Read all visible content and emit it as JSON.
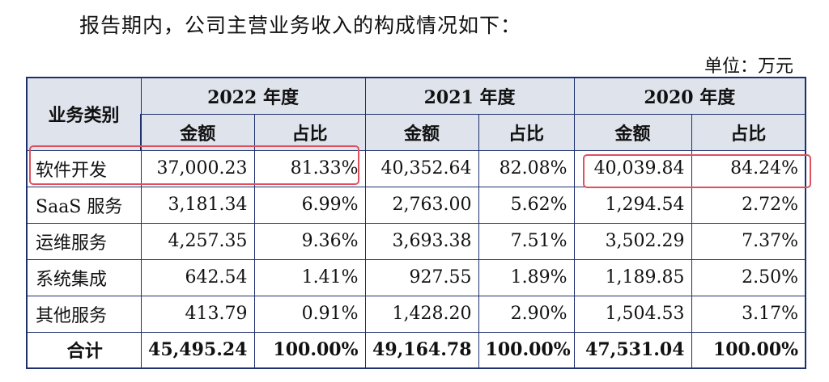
{
  "intro_text": "报告期内，公司主营业务收入的构成情况如下：",
  "unit_label": "单位：万元",
  "table": {
    "category_header": "业务类别",
    "years": [
      "2022 年度",
      "2021 年度",
      "2020 年度"
    ],
    "amount_label": "金额",
    "ratio_label": "占比",
    "rows": [
      {
        "category": "软件开发",
        "cells": [
          "37,000.23",
          "81.33%",
          "40,352.64",
          "82.08%",
          "40,039.84",
          "84.24%"
        ]
      },
      {
        "category": "SaaS 服务",
        "cells": [
          "3,181.34",
          "6.99%",
          "2,763.00",
          "5.62%",
          "1,294.54",
          "2.72%"
        ]
      },
      {
        "category": "运维服务",
        "cells": [
          "4,257.35",
          "9.36%",
          "3,693.38",
          "7.51%",
          "3,502.29",
          "7.37%"
        ]
      },
      {
        "category": "系统集成",
        "cells": [
          "642.54",
          "1.41%",
          "927.55",
          "1.89%",
          "1,189.85",
          "2.50%"
        ]
      },
      {
        "category": "其他服务",
        "cells": [
          "413.79",
          "0.91%",
          "1,428.20",
          "2.90%",
          "1,504.53",
          "3.17%"
        ]
      }
    ],
    "total": {
      "category": "合计",
      "cells": [
        "45,495.24",
        "100.00%",
        "49,164.78",
        "100.00%",
        "47,531.04",
        "100.00%"
      ]
    }
  },
  "colors": {
    "table_border": "#1e2f6e",
    "header_background": "#dfe3ec",
    "highlight_box": "#e0505c"
  }
}
